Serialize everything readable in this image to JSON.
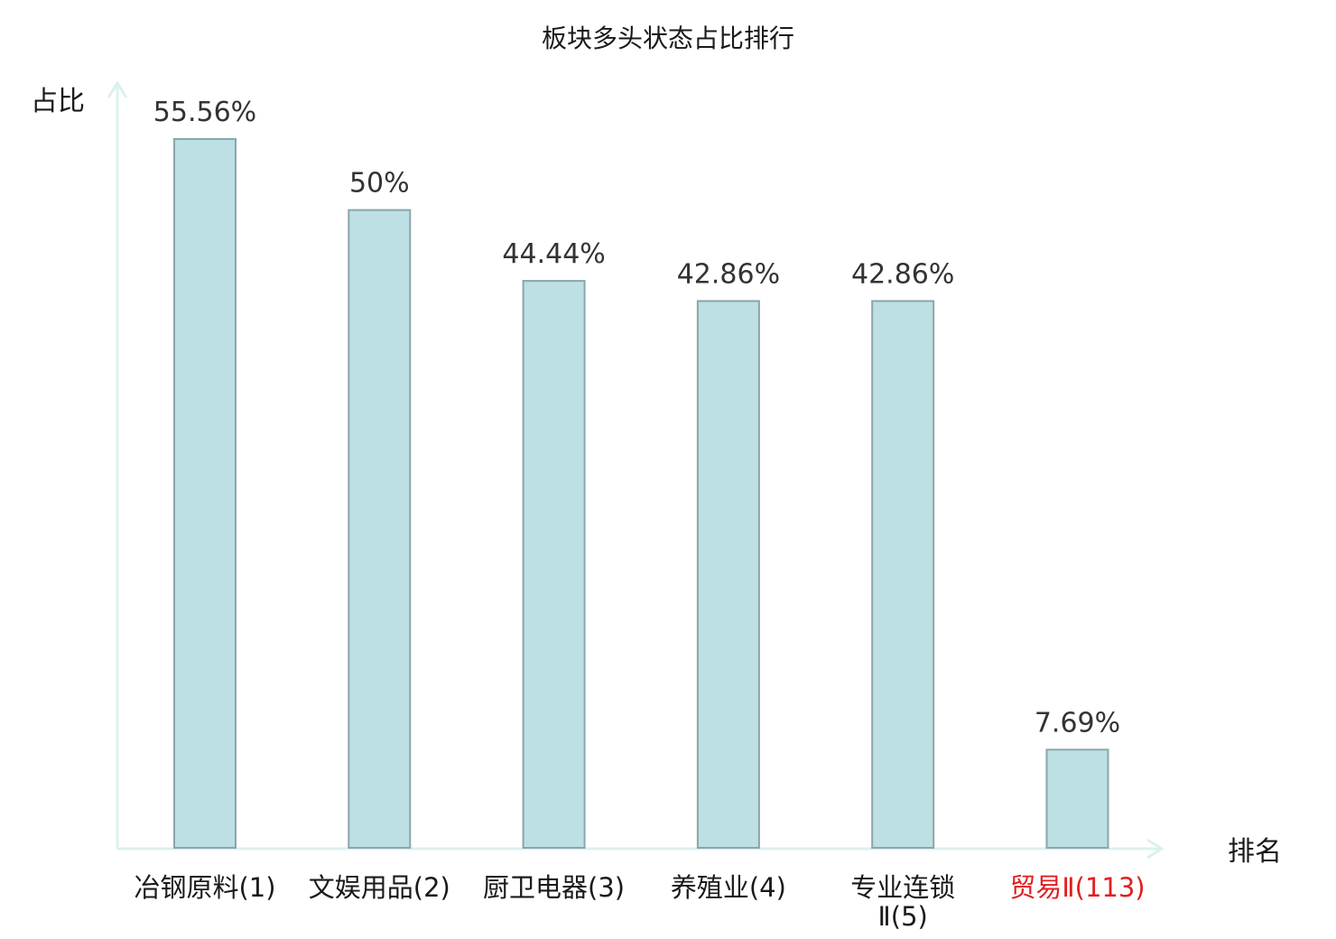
{
  "colors": {
    "bar_fill": "#bce0e3",
    "bar_stroke": "#8aa6aa",
    "axis": "#dcf1ef",
    "label": "#333333",
    "category": "#1a1a1a",
    "highlight": "#e02020"
  },
  "chart_data": {
    "type": "bar",
    "title": "板块多头状态占比排行",
    "xlabel": "排名",
    "ylabel": "占比",
    "ylim": [
      0,
      60
    ],
    "grid": false,
    "categories": [
      "冶钢原料(1)",
      "文娱用品(2)",
      "厨卫电器(3)",
      "养殖业(4)",
      "专业连锁Ⅱ(5)",
      "贸易Ⅱ(113)"
    ],
    "category_lines": [
      [
        "冶钢原料(1)"
      ],
      [
        "文娱用品(2)"
      ],
      [
        "厨卫电器(3)"
      ],
      [
        "养殖业(4)"
      ],
      [
        "专业连锁",
        "Ⅱ(5)"
      ],
      [
        "贸易Ⅱ(113)"
      ]
    ],
    "highlighted": [
      false,
      false,
      false,
      false,
      false,
      true
    ],
    "values": [
      55.56,
      50,
      44.44,
      42.86,
      42.86,
      7.69
    ],
    "value_labels": [
      "55.56%",
      "50%",
      "44.44%",
      "42.86%",
      "42.86%",
      "7.69%"
    ]
  }
}
